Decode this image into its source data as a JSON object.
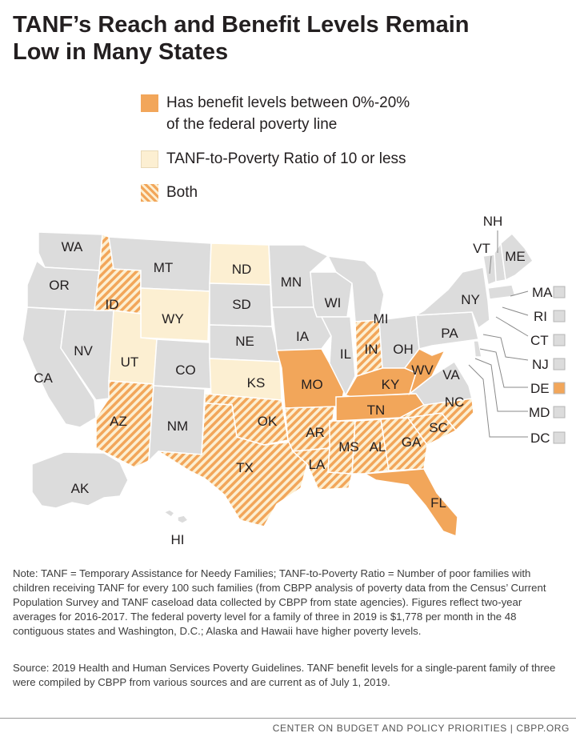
{
  "title_line1": "TANF’s Reach and Benefit Levels Remain",
  "title_line2": "Low in Many States",
  "legend": [
    {
      "key": "benefit",
      "label_line1": "Has benefit levels between 0%-20%",
      "label_line2": "of the federal poverty line",
      "color": "#f2a65a"
    },
    {
      "key": "ratio",
      "label_line1": "TANF-to-Poverty Ratio of 10 or less",
      "label_line2": "",
      "color": "#fcefd2"
    },
    {
      "key": "both",
      "label_line1": "Both",
      "label_line2": "",
      "color": "#f2a65a"
    }
  ],
  "colors": {
    "default": "#dcdcdc",
    "benefit": "#f2a65a",
    "ratio": "#fcefd2",
    "both_stripe": "#f2a65a",
    "both_bg": "#fcefd2",
    "border": "#ffffff"
  },
  "states": {
    "WA": "none",
    "OR": "none",
    "CA": "none",
    "NV": "none",
    "ID": "both",
    "MT": "none",
    "WY": "ratio",
    "UT": "ratio",
    "AZ": "both",
    "CO": "none",
    "NM": "none",
    "ND": "ratio",
    "SD": "none",
    "NE": "none",
    "KS": "ratio",
    "OK": "both",
    "TX": "both",
    "MN": "none",
    "IA": "none",
    "MO": "benefit",
    "AR": "both",
    "LA": "both",
    "WI": "none",
    "IL": "none",
    "MI": "none",
    "IN": "both",
    "OH": "none",
    "KY": "benefit",
    "TN": "benefit",
    "MS": "both",
    "AL": "both",
    "GA": "both",
    "FL": "benefit",
    "SC": "both",
    "NC": "both",
    "VA": "none",
    "WV": "benefit",
    "PA": "none",
    "NY": "none",
    "VT": "none",
    "NH": "none",
    "ME": "none",
    "AK": "none",
    "HI": "none"
  },
  "small_states": [
    {
      "code": "MA",
      "status": "none"
    },
    {
      "code": "RI",
      "status": "none"
    },
    {
      "code": "CT",
      "status": "none"
    },
    {
      "code": "NJ",
      "status": "none"
    },
    {
      "code": "DE",
      "status": "benefit"
    },
    {
      "code": "MD",
      "status": "none"
    },
    {
      "code": "DC",
      "status": "none"
    }
  ],
  "note": "Note: TANF = Temporary Assistance for Needy Families; TANF-to-Poverty Ratio = Number of poor families with children receiving TANF for every 100 such families (from CBPP analysis of poverty data from the Census’ Current Population Survey and TANF caseload data collected by CBPP from state agencies). Figures reflect two-year averages for 2016-2017. The federal poverty level for a family of three in 2019 is $1,778 per month in the 48 contiguous states and Washington, D.C.; Alaska and Hawaii have higher poverty levels.",
  "source": "Source: 2019 Health and Human Services Poverty Guidelines. TANF benefit levels for a single-parent family of three were compiled by CBPP from various sources and are current as of July 1, 2019.",
  "footer": "CENTER ON BUDGET AND POLICY PRIORITIES | CBPP.ORG"
}
